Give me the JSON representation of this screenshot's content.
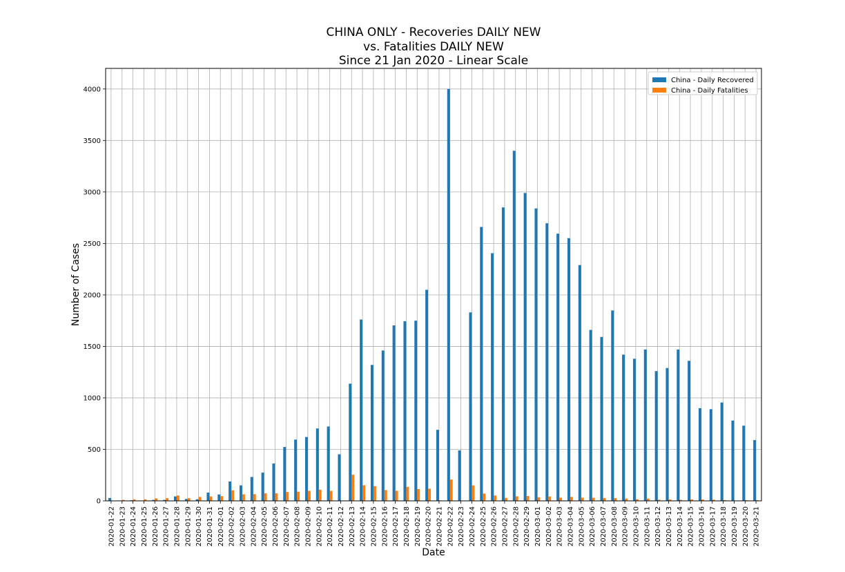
{
  "chart_data": {
    "type": "bar",
    "title": [
      "CHINA ONLY - Recoveries DAILY NEW",
      "vs. Fatalities DAILY NEW",
      "Since 21 Jan 2020 - Linear Scale"
    ],
    "xlabel": "Date",
    "ylabel": "Number of Cases",
    "ylim": [
      0,
      4200
    ],
    "yticks": [
      0,
      500,
      1000,
      1500,
      2000,
      2500,
      3000,
      3500,
      4000
    ],
    "grid": true,
    "legend_position": "top-right",
    "categories": [
      "2020-01-22",
      "2020-01-23",
      "2020-01-24",
      "2020-01-25",
      "2020-01-26",
      "2020-01-27",
      "2020-01-28",
      "2020-01-29",
      "2020-01-30",
      "2020-01-31",
      "2020-02-01",
      "2020-02-02",
      "2020-02-03",
      "2020-02-04",
      "2020-02-05",
      "2020-02-06",
      "2020-02-07",
      "2020-02-08",
      "2020-02-09",
      "2020-02-10",
      "2020-02-11",
      "2020-02-12",
      "2020-02-13",
      "2020-02-14",
      "2020-02-15",
      "2020-02-16",
      "2020-02-17",
      "2020-02-18",
      "2020-02-19",
      "2020-02-20",
      "2020-02-21",
      "2020-02-22",
      "2020-02-23",
      "2020-02-24",
      "2020-02-25",
      "2020-02-26",
      "2020-02-27",
      "2020-02-28",
      "2020-02-29",
      "2020-03-01",
      "2020-03-02",
      "2020-03-03",
      "2020-03-04",
      "2020-03-05",
      "2020-03-06",
      "2020-03-07",
      "2020-03-08",
      "2020-03-09",
      "2020-03-10",
      "2020-03-11",
      "2020-03-12",
      "2020-03-13",
      "2020-03-14",
      "2020-03-15",
      "2020-03-16",
      "2020-03-17",
      "2020-03-18",
      "2020-03-19",
      "2020-03-20",
      "2020-03-21"
    ],
    "series": [
      {
        "name": "China - Daily Recovered",
        "color": "#1f77b4",
        "values": [
          28,
          2,
          6,
          3,
          9,
          9,
          43,
          18,
          15,
          80,
          62,
          188,
          150,
          232,
          274,
          363,
          523,
          595,
          620,
          703,
          722,
          452,
          1138,
          1761,
          1320,
          1460,
          1704,
          1744,
          1750,
          2050,
          690,
          4000,
          490,
          1830,
          2660,
          2405,
          2850,
          3400,
          2990,
          2840,
          2696,
          2595,
          2551,
          2290,
          1660,
          1592,
          1849,
          1420,
          1380,
          1470,
          1260,
          1290,
          1470,
          1360,
          900,
          890,
          955,
          780,
          730,
          590
        ]
      },
      {
        "name": "China - Daily Fatalities",
        "color": "#ff7f0e",
        "values": [
          0,
          9,
          15,
          15,
          24,
          26,
          52,
          26,
          38,
          43,
          46,
          102,
          64,
          65,
          73,
          73,
          86,
          89,
          97,
          108,
          97,
          2,
          254,
          152,
          143,
          105,
          98,
          136,
          114,
          118,
          4,
          207,
          2,
          150,
          71,
          52,
          29,
          44,
          47,
          35,
          42,
          31,
          38,
          31,
          30,
          28,
          27,
          22,
          16,
          22,
          11,
          13,
          10,
          14,
          13,
          11,
          8,
          3,
          7,
          6
        ]
      }
    ]
  }
}
